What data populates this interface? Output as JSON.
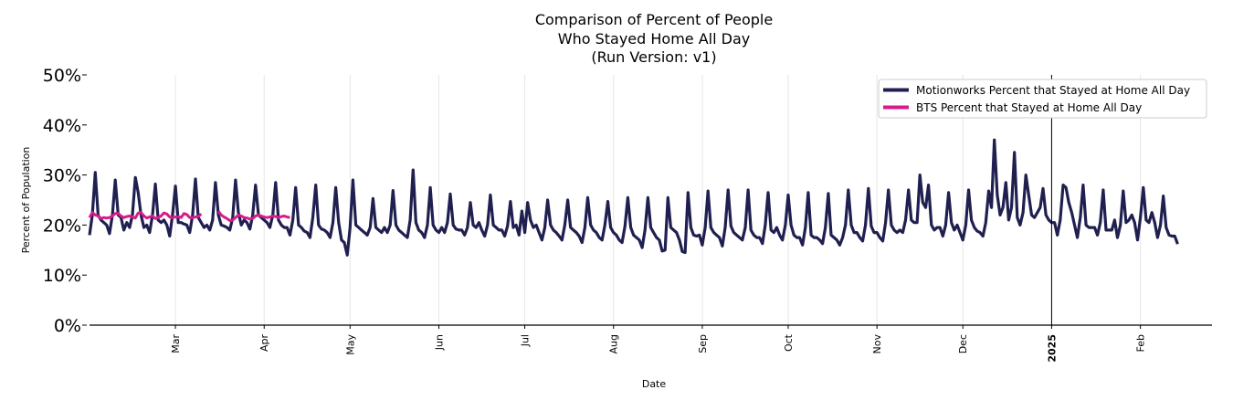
{
  "chart_data": {
    "type": "line",
    "title": [
      "Comparison of Percent of People",
      "Who Stayed Home All Day",
      "(Run Version: v1)"
    ],
    "xlabel": "Date",
    "ylabel": "Percent of Population",
    "ylim": [
      0,
      50
    ],
    "yticks": [
      0,
      10,
      20,
      30,
      40,
      50
    ],
    "ytick_labels": [
      "0%",
      "10%",
      "20%",
      "30%",
      "40%",
      "50%"
    ],
    "x_start_day": 0,
    "x_end_day": 392,
    "xticks": [
      {
        "day": 30,
        "label": "Mar",
        "bold": false
      },
      {
        "day": 61,
        "label": "Apr",
        "bold": false
      },
      {
        "day": 91,
        "label": "May",
        "bold": false
      },
      {
        "day": 122,
        "label": "Jun",
        "bold": false
      },
      {
        "day": 152,
        "label": "Jul",
        "bold": false
      },
      {
        "day": 183,
        "label": "Aug",
        "bold": false
      },
      {
        "day": 214,
        "label": "Sep",
        "bold": false
      },
      {
        "day": 244,
        "label": "Oct",
        "bold": false
      },
      {
        "day": 275,
        "label": "Nov",
        "bold": false
      },
      {
        "day": 305,
        "label": "Dec",
        "bold": false
      },
      {
        "day": 336,
        "label": "2025",
        "bold": true
      },
      {
        "day": 367,
        "label": "Feb",
        "bold": false
      }
    ],
    "vline_day": 336,
    "legend_position": "top-right",
    "series": [
      {
        "name": "Motionworks Percent that Stayed at Home All Day",
        "color": "#1f2050",
        "start_day": 0,
        "values": [
          18,
          22,
          30.5,
          22,
          21,
          20.5,
          20,
          18.3,
          22,
          29,
          22,
          21.5,
          19,
          20.5,
          19.5,
          22,
          29.5,
          26.5,
          22,
          19.5,
          20,
          18.5,
          22,
          28.2,
          21,
          20.5,
          21,
          20,
          17.8,
          22,
          27.8,
          20.5,
          20.5,
          20.2,
          20,
          18.5,
          22,
          29.2,
          21.5,
          20.5,
          19.5,
          20,
          19,
          21,
          28.5,
          22,
          20,
          19.8,
          19.5,
          19,
          21.5,
          29,
          22.5,
          20,
          21,
          20.5,
          19.2,
          22,
          28,
          22,
          21.5,
          21,
          20.5,
          19.5,
          22,
          28.5,
          21,
          20,
          19.5,
          19.5,
          18,
          21,
          27.5,
          20,
          19.5,
          18.8,
          18.5,
          17.5,
          21.5,
          28,
          20,
          19.2,
          19,
          18.5,
          17.5,
          20.5,
          27.5,
          20.5,
          17,
          16.5,
          14,
          19.5,
          29,
          20,
          19.5,
          19,
          18.5,
          18,
          19.5,
          25.3,
          19.5,
          19,
          18.5,
          19.5,
          18.5,
          20,
          26.9,
          20,
          19,
          18.5,
          18,
          17.5,
          21,
          31,
          20.5,
          19,
          18.5,
          17.5,
          20,
          27.5,
          20,
          19,
          18.5,
          19.5,
          18.5,
          20.5,
          26.2,
          20,
          19.2,
          19,
          19,
          18,
          19.5,
          24.5,
          20,
          19.5,
          20.5,
          19,
          17.8,
          20,
          26,
          20,
          19.5,
          19,
          19,
          17.8,
          19.8,
          24.7,
          19.5,
          20,
          18,
          22.8,
          18.5,
          24.5,
          21,
          19.5,
          20,
          18.5,
          17,
          19.5,
          25,
          20,
          19,
          18.5,
          17.8,
          17,
          20,
          25,
          19.5,
          19,
          18.5,
          17.8,
          16.5,
          19.5,
          25.5,
          20,
          19,
          18.5,
          17.5,
          17,
          20,
          24.7,
          19.5,
          18.5,
          18,
          17,
          16.5,
          19.8,
          25.5,
          19.5,
          18,
          17.5,
          17,
          15.5,
          19,
          25.5,
          19.5,
          18.5,
          17.5,
          17,
          14.8,
          15,
          25.5,
          19.5,
          19,
          18.5,
          17,
          14.7,
          14.5,
          26.5,
          19.5,
          18,
          17.8,
          18,
          16,
          19.5,
          26.8,
          19.5,
          18.5,
          18,
          17.5,
          15.8,
          19.5,
          27,
          19.8,
          18.5,
          18,
          17.5,
          17,
          19.5,
          27,
          19,
          18,
          17.5,
          17.5,
          16.3,
          20,
          26.5,
          19,
          18.5,
          19.5,
          18,
          17,
          20,
          26,
          20,
          18,
          17.5,
          17.5,
          16,
          19.5,
          26.5,
          18,
          17.5,
          17.5,
          17,
          16.3,
          19.5,
          26.3,
          18,
          17.5,
          17,
          16,
          17.5,
          20,
          27,
          20,
          18.5,
          18.5,
          17.5,
          16.8,
          20,
          27.3,
          19.8,
          18.5,
          18.5,
          17.5,
          16.8,
          20.5,
          27,
          20,
          19,
          18.5,
          19,
          18.5,
          21,
          27,
          21,
          20.5,
          20.5,
          30,
          24.5,
          23.5,
          28,
          20,
          19,
          19.5,
          19.5,
          17.8,
          20,
          26.5,
          20.5,
          19,
          20,
          18.5,
          17,
          20,
          27,
          21,
          19.5,
          18.8,
          18.5,
          17.8,
          20.5,
          26.8,
          23.5,
          37,
          26,
          22,
          23.5,
          28.5,
          21,
          23.5,
          34.5,
          21.5,
          20,
          22.5,
          30,
          26,
          22,
          21.5,
          22.5,
          23.5,
          27.3,
          22,
          21,
          20.5,
          20.5,
          18,
          21,
          28,
          27.5,
          24.5,
          22.5,
          20,
          17.5,
          21.5,
          28,
          20,
          19.5,
          19.5,
          19.5,
          18,
          20.5,
          27,
          19,
          19,
          19,
          21,
          17.5,
          20,
          26.8,
          20.5,
          21,
          22,
          20.5,
          17,
          21.5,
          27.5,
          21,
          20.5,
          22.5,
          20.5,
          17.5,
          20,
          25.8,
          19.5,
          18,
          17.8,
          17.8,
          16.2
        ]
      },
      {
        "name": "BTS Percent that Stayed at Home All Day",
        "color": "#d81b8c",
        "segments": [
          {
            "start_day": 0,
            "values": [
              21.5,
              22.5,
              22,
              21.8,
              21.3,
              21.5,
              21.4,
              21.5,
              21.8,
              22.3,
              22.3,
              21.8,
              21.5,
              21.7,
              21.8,
              21.6,
              21.4,
              22.4,
              22.5,
              21.8,
              21.4,
              21.6,
              21.8,
              21.3,
              21.5,
              21.8,
              22.4,
              22.2,
              21.6,
              21.5,
              21.6,
              21.7,
              21.5,
              22.3,
              22.1,
              21.5,
              21.5,
              21.6,
              21.7,
              22.2
            ]
          },
          {
            "start_day": 45,
            "values": [
              22.8,
              22,
              21.6,
              21.3,
              20.9,
              21,
              21.5,
              22,
              21.8,
              21.5,
              21.4,
              21.2,
              21.3,
              21.8,
              22,
              21.8,
              21.6,
              21.5,
              21.6,
              21.8,
              21.7,
              21.5,
              21.7,
              21.8,
              21.6,
              21.5
            ]
          }
        ]
      }
    ]
  }
}
